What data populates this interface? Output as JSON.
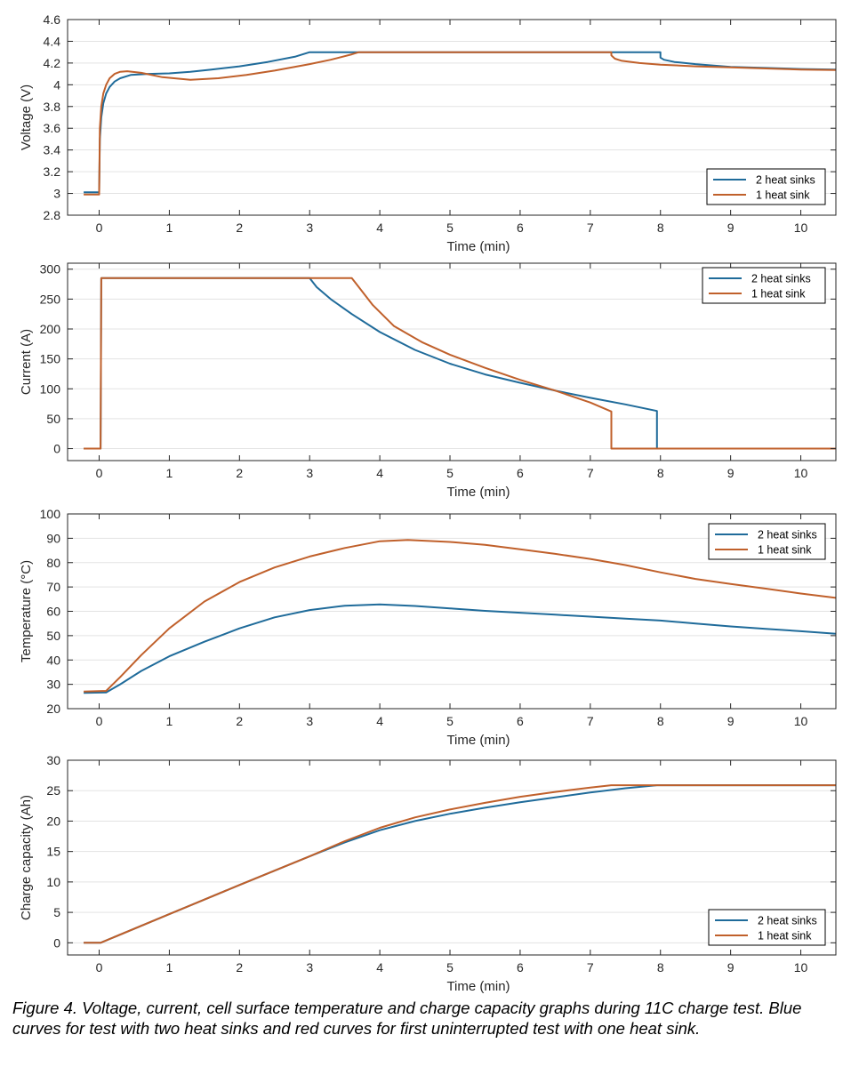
{
  "caption": "Figure 4. Voltage, current, cell surface temperature and charge capacity graphs during 11C charge test. Blue curves for test with two heat sinks and red curves for first uninterrupted test with one heat sink.",
  "colors": {
    "series_1": "#1f6b9a",
    "series_2": "#c0602b",
    "grid": "#e3e3e3",
    "axis": "#262626"
  },
  "chart_data": [
    {
      "type": "line",
      "xlabel": "Time (min)",
      "ylabel": "Voltage (V)",
      "xlim": [
        -0.45,
        10.5
      ],
      "ylim": [
        2.8,
        4.6
      ],
      "xticks": [
        0,
        1,
        2,
        3,
        4,
        5,
        6,
        7,
        8,
        9,
        10
      ],
      "yticks": [
        2.8,
        3,
        3.2,
        3.4,
        3.6,
        3.8,
        4,
        4.2,
        4.4,
        4.6
      ],
      "grid": "horizontal",
      "legend": "bottom-right",
      "series": [
        {
          "name": "2 heat sinks",
          "color": "#1f6b9a",
          "points": [
            [
              -0.22,
              3.01
            ],
            [
              0,
              3.01
            ],
            [
              0.0,
              3.01
            ],
            [
              0.01,
              3.5
            ],
            [
              0.03,
              3.7
            ],
            [
              0.06,
              3.83
            ],
            [
              0.1,
              3.92
            ],
            [
              0.15,
              3.98
            ],
            [
              0.22,
              4.03
            ],
            [
              0.3,
              4.06
            ],
            [
              0.45,
              4.09
            ],
            [
              0.7,
              4.1
            ],
            [
              1.0,
              4.105
            ],
            [
              1.3,
              4.12
            ],
            [
              1.6,
              4.14
            ],
            [
              2.0,
              4.17
            ],
            [
              2.4,
              4.21
            ],
            [
              2.8,
              4.26
            ],
            [
              3.0,
              4.3
            ],
            [
              8.0,
              4.3
            ],
            [
              8.0,
              4.25
            ],
            [
              8.05,
              4.23
            ],
            [
              8.2,
              4.21
            ],
            [
              8.5,
              4.19
            ],
            [
              9.0,
              4.165
            ],
            [
              9.5,
              4.155
            ],
            [
              10,
              4.145
            ],
            [
              10.5,
              4.14
            ]
          ]
        },
        {
          "name": "1 heat sink",
          "color": "#c0602b",
          "points": [
            [
              -0.22,
              2.99
            ],
            [
              0,
              2.99
            ],
            [
              0.0,
              2.99
            ],
            [
              0.01,
              3.6
            ],
            [
              0.03,
              3.8
            ],
            [
              0.06,
              3.92
            ],
            [
              0.1,
              4.0
            ],
            [
              0.15,
              4.06
            ],
            [
              0.22,
              4.1
            ],
            [
              0.3,
              4.12
            ],
            [
              0.4,
              4.125
            ],
            [
              0.6,
              4.11
            ],
            [
              0.9,
              4.07
            ],
            [
              1.3,
              4.045
            ],
            [
              1.7,
              4.06
            ],
            [
              2.1,
              4.09
            ],
            [
              2.5,
              4.13
            ],
            [
              3.0,
              4.19
            ],
            [
              3.3,
              4.23
            ],
            [
              3.6,
              4.28
            ],
            [
              3.7,
              4.3
            ],
            [
              7.3,
              4.3
            ],
            [
              7.3,
              4.27
            ],
            [
              7.35,
              4.24
            ],
            [
              7.45,
              4.22
            ],
            [
              7.7,
              4.2
            ],
            [
              8.0,
              4.185
            ],
            [
              8.5,
              4.17
            ],
            [
              9.0,
              4.16
            ],
            [
              9.5,
              4.15
            ],
            [
              10,
              4.14
            ],
            [
              10.5,
              4.135
            ]
          ]
        }
      ]
    },
    {
      "type": "line",
      "xlabel": "Time (min)",
      "ylabel": "Current (A)",
      "xlim": [
        -0.45,
        10.5
      ],
      "ylim": [
        -20,
        310
      ],
      "xticks": [
        0,
        1,
        2,
        3,
        4,
        5,
        6,
        7,
        8,
        9,
        10
      ],
      "yticks": [
        0,
        50,
        100,
        150,
        200,
        250,
        300
      ],
      "grid": "horizontal",
      "legend": "top-right",
      "series": [
        {
          "name": "2 heat sinks",
          "color": "#1f6b9a",
          "points": [
            [
              -0.22,
              0
            ],
            [
              0.02,
              0
            ],
            [
              0.03,
              285
            ],
            [
              3.0,
              285
            ],
            [
              3.1,
              270
            ],
            [
              3.3,
              250
            ],
            [
              3.6,
              225
            ],
            [
              4.0,
              195
            ],
            [
              4.5,
              165
            ],
            [
              5.0,
              142
            ],
            [
              5.5,
              124
            ],
            [
              6.0,
              110
            ],
            [
              6.5,
              97
            ],
            [
              7.0,
              85
            ],
            [
              7.5,
              74
            ],
            [
              7.95,
              63
            ],
            [
              7.95,
              0
            ],
            [
              8.0,
              0
            ],
            [
              10.5,
              0
            ]
          ]
        },
        {
          "name": "1 heat sink",
          "color": "#c0602b",
          "points": [
            [
              -0.22,
              0
            ],
            [
              0.02,
              0
            ],
            [
              0.03,
              285
            ],
            [
              3.6,
              285
            ],
            [
              3.7,
              270
            ],
            [
              3.9,
              240
            ],
            [
              4.2,
              205
            ],
            [
              4.6,
              178
            ],
            [
              5.0,
              157
            ],
            [
              5.5,
              135
            ],
            [
              6.0,
              115
            ],
            [
              6.5,
              97
            ],
            [
              7.0,
              77
            ],
            [
              7.3,
              62
            ],
            [
              7.3,
              0
            ],
            [
              7.35,
              0
            ],
            [
              10.5,
              0
            ]
          ]
        }
      ]
    },
    {
      "type": "line",
      "xlabel": "Time (min)",
      "ylabel": "Temperature (°C)",
      "xlim": [
        -0.45,
        10.5
      ],
      "ylim": [
        20,
        100
      ],
      "xticks": [
        0,
        1,
        2,
        3,
        4,
        5,
        6,
        7,
        8,
        9,
        10
      ],
      "yticks": [
        20,
        30,
        40,
        50,
        60,
        70,
        80,
        90,
        100
      ],
      "grid": "horizontal",
      "legend": "top-right",
      "series": [
        {
          "name": "2 heat sinks",
          "color": "#1f6b9a",
          "points": [
            [
              -0.22,
              26.5
            ],
            [
              0.1,
              26.7
            ],
            [
              0.3,
              30
            ],
            [
              0.6,
              35.5
            ],
            [
              1.0,
              41.5
            ],
            [
              1.5,
              47.5
            ],
            [
              2.0,
              53
            ],
            [
              2.5,
              57.5
            ],
            [
              3.0,
              60.5
            ],
            [
              3.5,
              62.3
            ],
            [
              4.0,
              62.8
            ],
            [
              4.5,
              62.2
            ],
            [
              5.0,
              61.2
            ],
            [
              5.5,
              60.2
            ],
            [
              6.0,
              59.4
            ],
            [
              6.5,
              58.6
            ],
            [
              7.0,
              57.8
            ],
            [
              7.5,
              57
            ],
            [
              8.0,
              56.2
            ],
            [
              8.5,
              55
            ],
            [
              9.0,
              53.8
            ],
            [
              9.5,
              52.8
            ],
            [
              10.0,
              51.8
            ],
            [
              10.5,
              50.8
            ]
          ]
        },
        {
          "name": "1 heat sink",
          "color": "#c0602b",
          "points": [
            [
              -0.22,
              27
            ],
            [
              0.1,
              27.3
            ],
            [
              0.3,
              33
            ],
            [
              0.6,
              42
            ],
            [
              1.0,
              53
            ],
            [
              1.5,
              64
            ],
            [
              2.0,
              72
            ],
            [
              2.5,
              78
            ],
            [
              3.0,
              82.5
            ],
            [
              3.5,
              86
            ],
            [
              4.0,
              88.8
            ],
            [
              4.4,
              89.3
            ],
            [
              5.0,
              88.5
            ],
            [
              5.5,
              87.3
            ],
            [
              6.0,
              85.5
            ],
            [
              6.5,
              83.6
            ],
            [
              7.0,
              81.5
            ],
            [
              7.5,
              79
            ],
            [
              8.0,
              76
            ],
            [
              8.5,
              73.3
            ],
            [
              9.0,
              71.2
            ],
            [
              9.5,
              69.3
            ],
            [
              10.0,
              67.3
            ],
            [
              10.5,
              65.5
            ]
          ]
        }
      ]
    },
    {
      "type": "line",
      "xlabel": "Time (min)",
      "ylabel": "Charge capacity (Ah)",
      "xlim": [
        -0.45,
        10.5
      ],
      "ylim": [
        -2,
        30
      ],
      "xticks": [
        0,
        1,
        2,
        3,
        4,
        5,
        6,
        7,
        8,
        9,
        10
      ],
      "yticks": [
        0,
        5,
        10,
        15,
        20,
        25,
        30
      ],
      "grid": "horizontal",
      "legend": "bottom-right",
      "series": [
        {
          "name": "2 heat sinks",
          "color": "#1f6b9a",
          "points": [
            [
              -0.22,
              0
            ],
            [
              0.02,
              0
            ],
            [
              1.0,
              4.7
            ],
            [
              2.0,
              9.5
            ],
            [
              3.0,
              14.2
            ],
            [
              3.5,
              16.5
            ],
            [
              4.0,
              18.5
            ],
            [
              4.5,
              20
            ],
            [
              5.0,
              21.2
            ],
            [
              5.5,
              22.2
            ],
            [
              6.0,
              23.1
            ],
            [
              6.5,
              23.9
            ],
            [
              7.0,
              24.7
            ],
            [
              7.5,
              25.4
            ],
            [
              7.95,
              25.9
            ],
            [
              10.5,
              25.9
            ]
          ]
        },
        {
          "name": "1 heat sink",
          "color": "#c0602b",
          "points": [
            [
              -0.22,
              0
            ],
            [
              0.02,
              0
            ],
            [
              1.0,
              4.7
            ],
            [
              2.0,
              9.5
            ],
            [
              3.0,
              14.2
            ],
            [
              3.5,
              16.7
            ],
            [
              4.0,
              18.9
            ],
            [
              4.5,
              20.6
            ],
            [
              5.0,
              21.9
            ],
            [
              5.5,
              23
            ],
            [
              6.0,
              24
            ],
            [
              6.5,
              24.8
            ],
            [
              7.0,
              25.5
            ],
            [
              7.3,
              25.9
            ],
            [
              10.5,
              25.9
            ]
          ]
        }
      ]
    }
  ]
}
